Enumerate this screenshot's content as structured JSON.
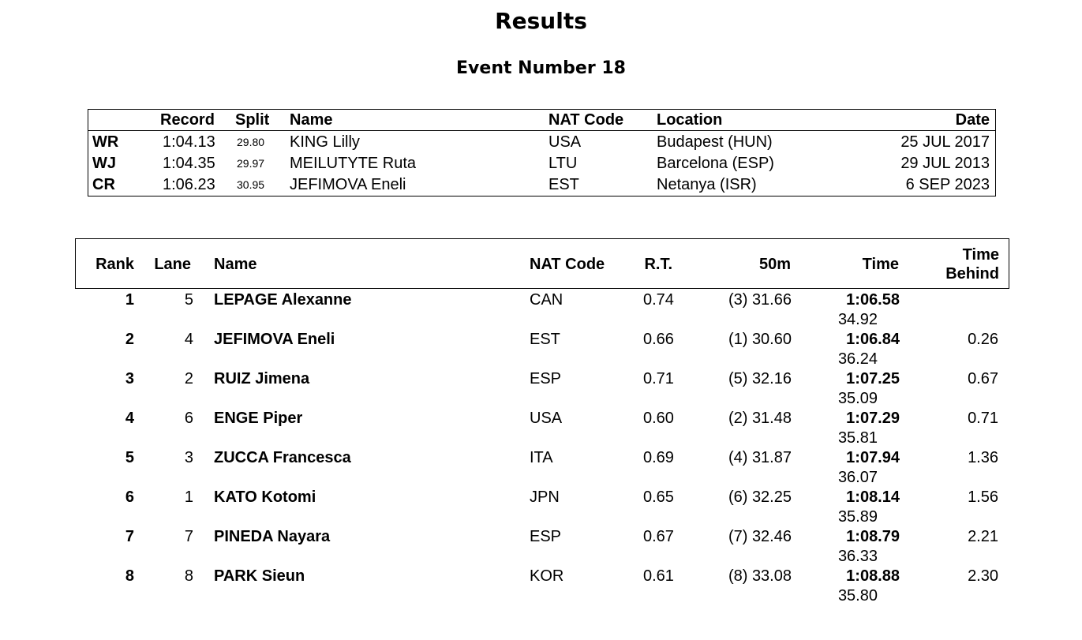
{
  "header": {
    "title": "Results",
    "event": "Event Number 18"
  },
  "records": {
    "columns": {
      "record": "Record",
      "split": "Split",
      "name": "Name",
      "nat": "NAT Code",
      "location": "Location",
      "date": "Date"
    },
    "rows": [
      {
        "type": "WR",
        "record": "1:04.13",
        "split": "29.80",
        "name": "KING Lilly",
        "nat": "USA",
        "location": "Budapest (HUN)",
        "date": "25 JUL 2017"
      },
      {
        "type": "WJ",
        "record": "1:04.35",
        "split": "29.97",
        "name": "MEILUTYTE Ruta",
        "nat": "LTU",
        "location": "Barcelona (ESP)",
        "date": "29 JUL 2013"
      },
      {
        "type": "CR",
        "record": "1:06.23",
        "split": "30.95",
        "name": "JEFIMOVA Eneli",
        "nat": "EST",
        "location": "Netanya (ISR)",
        "date": "6 SEP 2023"
      }
    ]
  },
  "results": {
    "columns": {
      "rank": "Rank",
      "lane": "Lane",
      "name": "Name",
      "nat": "NAT Code",
      "rt": "R.T.",
      "split50": "50m",
      "time": "Time",
      "behind_line1": "Time",
      "behind_line2": "Behind"
    },
    "rows": [
      {
        "rank": "1",
        "lane": "5",
        "name": "LEPAGE Alexanne",
        "nat": "CAN",
        "rt": "0.74",
        "split50": "(3) 31.66",
        "time": "1:06.58",
        "split2": "34.92",
        "behind": ""
      },
      {
        "rank": "2",
        "lane": "4",
        "name": "JEFIMOVA Eneli",
        "nat": "EST",
        "rt": "0.66",
        "split50": "(1) 30.60",
        "time": "1:06.84",
        "split2": "36.24",
        "behind": "0.26"
      },
      {
        "rank": "3",
        "lane": "2",
        "name": "RUIZ Jimena",
        "nat": "ESP",
        "rt": "0.71",
        "split50": "(5) 32.16",
        "time": "1:07.25",
        "split2": "35.09",
        "behind": "0.67"
      },
      {
        "rank": "4",
        "lane": "6",
        "name": "ENGE Piper",
        "nat": "USA",
        "rt": "0.60",
        "split50": "(2) 31.48",
        "time": "1:07.29",
        "split2": "35.81",
        "behind": "0.71"
      },
      {
        "rank": "5",
        "lane": "3",
        "name": "ZUCCA Francesca",
        "nat": "ITA",
        "rt": "0.69",
        "split50": "(4) 31.87",
        "time": "1:07.94",
        "split2": "36.07",
        "behind": "1.36"
      },
      {
        "rank": "6",
        "lane": "1",
        "name": "KATO Kotomi",
        "nat": "JPN",
        "rt": "0.65",
        "split50": "(6) 32.25",
        "time": "1:08.14",
        "split2": "35.89",
        "behind": "1.56"
      },
      {
        "rank": "7",
        "lane": "7",
        "name": "PINEDA Nayara",
        "nat": "ESP",
        "rt": "0.67",
        "split50": "(7) 32.46",
        "time": "1:08.79",
        "split2": "36.33",
        "behind": "2.21"
      },
      {
        "rank": "8",
        "lane": "8",
        "name": "PARK Sieun",
        "nat": "KOR",
        "rt": "0.61",
        "split50": "(8) 33.08",
        "time": "1:08.88",
        "split2": "35.80",
        "behind": "2.30"
      }
    ]
  }
}
